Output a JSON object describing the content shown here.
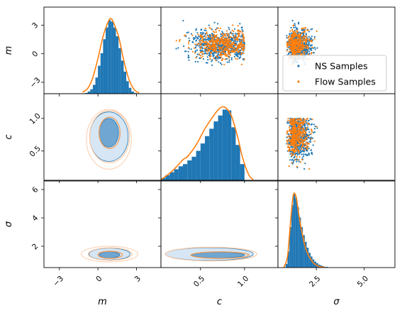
{
  "chart_data": {
    "type": "scatter",
    "kind": "corner-plot",
    "parameters": [
      "m",
      "c",
      "σ"
    ],
    "ranges": {
      "m": [
        -4.2,
        4.9
      ],
      "c": [
        0.05,
        1.38
      ],
      "sigma": [
        0.5,
        6.6
      ]
    },
    "ticks": {
      "m": [
        -3,
        0,
        3
      ],
      "c": [
        0.5,
        1.0
      ],
      "sigma_diag": [
        2.5,
        5.0
      ],
      "sigma_rows": [
        2,
        4,
        6
      ]
    },
    "tick_labels": {
      "m": [
        "−3",
        "0",
        "3"
      ],
      "c": [
        "0.5",
        "1.0"
      ],
      "sigma_diag": [
        "2.5",
        "5.0"
      ],
      "sigma_rows": [
        "2",
        "4",
        "6"
      ]
    },
    "axis_labels": {
      "x": [
        "m",
        "c",
        "σ"
      ],
      "y": [
        "m",
        "c",
        "σ"
      ]
    },
    "series": [
      {
        "name": "NS Samples",
        "color": "#1f77b4"
      },
      {
        "name": "Flow Samples",
        "color": "#ff7f0e"
      }
    ],
    "legend_placement": "upper-right panel",
    "marginals": {
      "m": {
        "hist_bins": [
          -1.0,
          -0.8,
          -0.6,
          -0.4,
          -0.2,
          0.0,
          0.2,
          0.4,
          0.6,
          0.8,
          1.0,
          1.2,
          1.4,
          1.6,
          1.8,
          2.0,
          2.2,
          2.4,
          2.6,
          2.8,
          3.0
        ],
        "hist_heights": [
          0.01,
          0.03,
          0.06,
          0.12,
          0.22,
          0.38,
          0.55,
          0.74,
          0.9,
          1.0,
          0.98,
          0.9,
          0.78,
          0.62,
          0.45,
          0.3,
          0.17,
          0.08,
          0.03,
          0.01
        ],
        "kde_x": [
          -1.2,
          -0.8,
          -0.4,
          0.0,
          0.4,
          0.8,
          1.0,
          1.2,
          1.6,
          2.0,
          2.4,
          2.8,
          3.2
        ],
        "kde_y": [
          0.02,
          0.07,
          0.22,
          0.48,
          0.78,
          0.98,
          1.02,
          0.97,
          0.78,
          0.46,
          0.2,
          0.06,
          0.01
        ]
      },
      "c": {
        "hist_bins": [
          0.05,
          0.1,
          0.15,
          0.2,
          0.25,
          0.3,
          0.35,
          0.4,
          0.45,
          0.5,
          0.55,
          0.6,
          0.65,
          0.7,
          0.75,
          0.8,
          0.85,
          0.9,
          0.95,
          1.0
        ],
        "hist_heights": [
          0.03,
          0.07,
          0.11,
          0.15,
          0.19,
          0.22,
          0.27,
          0.32,
          0.4,
          0.5,
          0.6,
          0.7,
          0.8,
          0.88,
          0.96,
          0.95,
          0.72,
          0.48,
          0.22
        ],
        "kde_x": [
          0.05,
          0.1,
          0.2,
          0.3,
          0.35,
          0.45,
          0.55,
          0.65,
          0.72,
          0.78,
          0.85,
          0.92,
          0.98,
          1.05,
          1.1
        ],
        "kde_y": [
          0.01,
          0.05,
          0.15,
          0.28,
          0.32,
          0.48,
          0.7,
          0.88,
          0.98,
          0.99,
          0.88,
          0.6,
          0.3,
          0.07,
          0.01
        ]
      },
      "sigma": {
        "hist_bins": [
          0.9,
          1.0,
          1.1,
          1.2,
          1.3,
          1.4,
          1.5,
          1.6,
          1.7,
          1.8,
          1.9,
          2.0,
          2.1,
          2.2,
          2.3,
          2.4,
          2.5,
          2.6,
          2.7,
          2.8,
          2.9,
          3.0,
          3.1
        ],
        "hist_heights": [
          0.05,
          0.22,
          0.55,
          0.85,
          1.0,
          0.95,
          0.82,
          0.68,
          0.55,
          0.44,
          0.35,
          0.27,
          0.2,
          0.15,
          0.11,
          0.08,
          0.06,
          0.04,
          0.03,
          0.02,
          0.01,
          0.01
        ],
        "kde_x": [
          0.8,
          1.0,
          1.15,
          1.3,
          1.45,
          1.6,
          1.8,
          2.0,
          2.3,
          2.6,
          3.0
        ],
        "kde_y": [
          0.0,
          0.15,
          0.6,
          0.98,
          0.96,
          0.7,
          0.42,
          0.22,
          0.08,
          0.02,
          0.0
        ]
      }
    },
    "samples": {
      "NS Samples": {
        "m_mean": 0.9,
        "m_sd": 0.75,
        "c_mean": 0.72,
        "c_sd": 0.17,
        "sigma_mean": 1.45,
        "sigma_sd": 0.38
      },
      "Flow Samples": {
        "m_mean": 0.95,
        "m_sd": 0.72,
        "c_mean": 0.74,
        "c_sd": 0.16,
        "sigma_mean": 1.4,
        "sigma_sd": 0.35
      }
    }
  }
}
